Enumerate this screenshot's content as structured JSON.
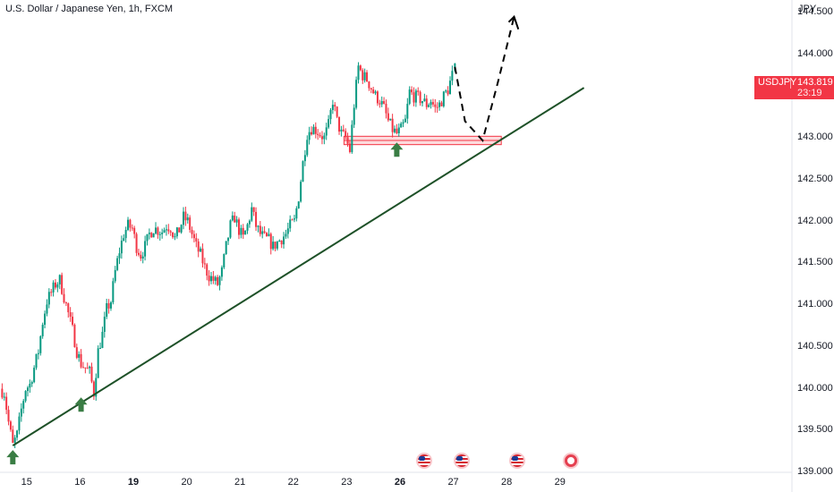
{
  "chart_title": "U.S. Dollar / Japanese Yen, 1h, FXCM",
  "currency_unit": "JPY",
  "price_badge": {
    "symbol": "USDJPY",
    "price": "143.819",
    "countdown": "23:19"
  },
  "colors": {
    "up": "#089981",
    "down": "#f23645",
    "trendline": "#1e5128",
    "arrow": "#3a7d44",
    "zone": "#f23645"
  },
  "chart_data": {
    "type": "candlestick",
    "title": "U.S. Dollar / Japanese Yen, 1h, FXCM",
    "ylabel": "JPY",
    "ylim": [
      139.0,
      144.65
    ],
    "xlim": [
      14.5,
      29.35
    ],
    "y_ticks": [
      "139.000",
      "139.500",
      "140.000",
      "140.500",
      "141.000",
      "141.500",
      "142.000",
      "142.500",
      "143.000",
      "143.500",
      "144.000",
      "144.500"
    ],
    "x_ticks": [
      {
        "label": "15",
        "x": 15,
        "bold": false
      },
      {
        "label": "16",
        "x": 16,
        "bold": false
      },
      {
        "label": "19",
        "x": 17,
        "bold": true
      },
      {
        "label": "20",
        "x": 18,
        "bold": false
      },
      {
        "label": "21",
        "x": 19,
        "bold": false
      },
      {
        "label": "22",
        "x": 20,
        "bold": false
      },
      {
        "label": "23",
        "x": 21,
        "bold": false
      },
      {
        "label": "26",
        "x": 22,
        "bold": true
      },
      {
        "label": "27",
        "x": 23,
        "bold": false
      },
      {
        "label": "28",
        "x": 24,
        "bold": false
      },
      {
        "label": "29",
        "x": 25,
        "bold": false
      }
    ],
    "path": [
      [
        14.5,
        140.0
      ],
      [
        14.58,
        139.95
      ],
      [
        14.66,
        139.6
      ],
      [
        14.74,
        139.32
      ],
      [
        14.82,
        139.45
      ],
      [
        14.9,
        139.75
      ],
      [
        14.98,
        140.0
      ],
      [
        15.06,
        140.05
      ],
      [
        15.14,
        140.25
      ],
      [
        15.22,
        140.45
      ],
      [
        15.3,
        140.8
      ],
      [
        15.38,
        141.05
      ],
      [
        15.46,
        141.15
      ],
      [
        15.54,
        141.25
      ],
      [
        15.62,
        141.3
      ],
      [
        15.7,
        141.1
      ],
      [
        15.78,
        140.9
      ],
      [
        15.86,
        140.7
      ],
      [
        15.94,
        140.45
      ],
      [
        16.02,
        140.3
      ],
      [
        16.1,
        140.25
      ],
      [
        16.18,
        140.2
      ],
      [
        16.26,
        139.95
      ],
      [
        16.34,
        140.45
      ],
      [
        16.42,
        140.65
      ],
      [
        16.5,
        140.95
      ],
      [
        16.58,
        141.05
      ],
      [
        16.66,
        141.4
      ],
      [
        16.74,
        141.65
      ],
      [
        16.82,
        141.85
      ],
      [
        16.9,
        141.95
      ],
      [
        16.98,
        141.92
      ],
      [
        17.06,
        141.7
      ],
      [
        17.14,
        141.6
      ],
      [
        17.22,
        141.7
      ],
      [
        17.3,
        141.85
      ],
      [
        17.38,
        141.92
      ],
      [
        17.46,
        141.9
      ],
      [
        17.54,
        141.88
      ],
      [
        17.62,
        141.95
      ],
      [
        17.7,
        141.93
      ],
      [
        17.78,
        141.8
      ],
      [
        17.86,
        141.9
      ],
      [
        17.94,
        142.05
      ],
      [
        18.02,
        142.0
      ],
      [
        18.1,
        141.85
      ],
      [
        18.18,
        141.7
      ],
      [
        18.26,
        141.6
      ],
      [
        18.34,
        141.45
      ],
      [
        18.42,
        141.35
      ],
      [
        18.5,
        141.3
      ],
      [
        18.58,
        141.25
      ],
      [
        18.66,
        141.4
      ],
      [
        18.74,
        141.7
      ],
      [
        18.82,
        141.95
      ],
      [
        18.9,
        142.05
      ],
      [
        18.98,
        141.9
      ],
      [
        19.06,
        141.8
      ],
      [
        19.14,
        141.95
      ],
      [
        19.22,
        142.15
      ],
      [
        19.3,
        141.95
      ],
      [
        19.38,
        141.85
      ],
      [
        19.46,
        141.8
      ],
      [
        19.54,
        141.78
      ],
      [
        19.62,
        141.7
      ],
      [
        19.7,
        141.75
      ],
      [
        19.78,
        141.8
      ],
      [
        19.86,
        141.85
      ],
      [
        19.94,
        141.95
      ],
      [
        20.02,
        142.0
      ],
      [
        20.1,
        142.3
      ],
      [
        20.18,
        142.7
      ],
      [
        20.26,
        143.05
      ],
      [
        20.34,
        143.12
      ],
      [
        20.42,
        143.1
      ],
      [
        20.5,
        143.05
      ],
      [
        20.58,
        143.0
      ],
      [
        20.66,
        143.15
      ],
      [
        20.74,
        143.45
      ],
      [
        20.82,
        143.2
      ],
      [
        20.9,
        143.05
      ],
      [
        20.98,
        143.0
      ],
      [
        21.06,
        142.85
      ],
      [
        21.14,
        143.4
      ],
      [
        21.22,
        143.85
      ],
      [
        21.3,
        143.75
      ],
      [
        21.38,
        143.7
      ],
      [
        21.46,
        143.6
      ],
      [
        21.54,
        143.5
      ],
      [
        21.62,
        143.45
      ],
      [
        21.7,
        143.35
      ],
      [
        21.78,
        143.2
      ],
      [
        21.86,
        143.1
      ],
      [
        21.94,
        143.05
      ],
      [
        22.02,
        143.1
      ],
      [
        22.1,
        143.2
      ],
      [
        22.18,
        143.55
      ],
      [
        22.26,
        143.5
      ],
      [
        22.34,
        143.48
      ],
      [
        22.42,
        143.45
      ],
      [
        22.5,
        143.4
      ],
      [
        22.58,
        143.45
      ],
      [
        22.66,
        143.35
      ],
      [
        22.74,
        143.4
      ],
      [
        22.82,
        143.5
      ],
      [
        22.9,
        143.58
      ],
      [
        22.98,
        143.75
      ],
      [
        23.03,
        143.819
      ]
    ],
    "trendline": {
      "start": [
        14.74,
        139.32
      ],
      "end": [
        25.45,
        143.6
      ]
    },
    "support_zone": {
      "x_start": 20.95,
      "x_end": 23.9,
      "y_low": 142.92,
      "y_high": 143.02
    },
    "projection": [
      [
        23.03,
        143.85
      ],
      [
        23.22,
        143.2
      ],
      [
        23.55,
        142.97
      ],
      [
        23.85,
        143.7
      ],
      [
        24.14,
        144.45
      ],
      [
        24.22,
        144.3
      ]
    ],
    "arrow_markers": [
      {
        "x": 14.74,
        "y": 139.32
      },
      {
        "x": 16.02,
        "y": 139.95
      },
      {
        "x": 21.94,
        "y": 143.0
      }
    ],
    "events": [
      {
        "x": 22.45,
        "icon": "us-flag-icon"
      },
      {
        "x": 23.15,
        "icon": "us-flag-icon"
      },
      {
        "x": 24.2,
        "icon": "us-flag-icon"
      },
      {
        "x": 25.2,
        "icon": "event-icon"
      }
    ]
  }
}
